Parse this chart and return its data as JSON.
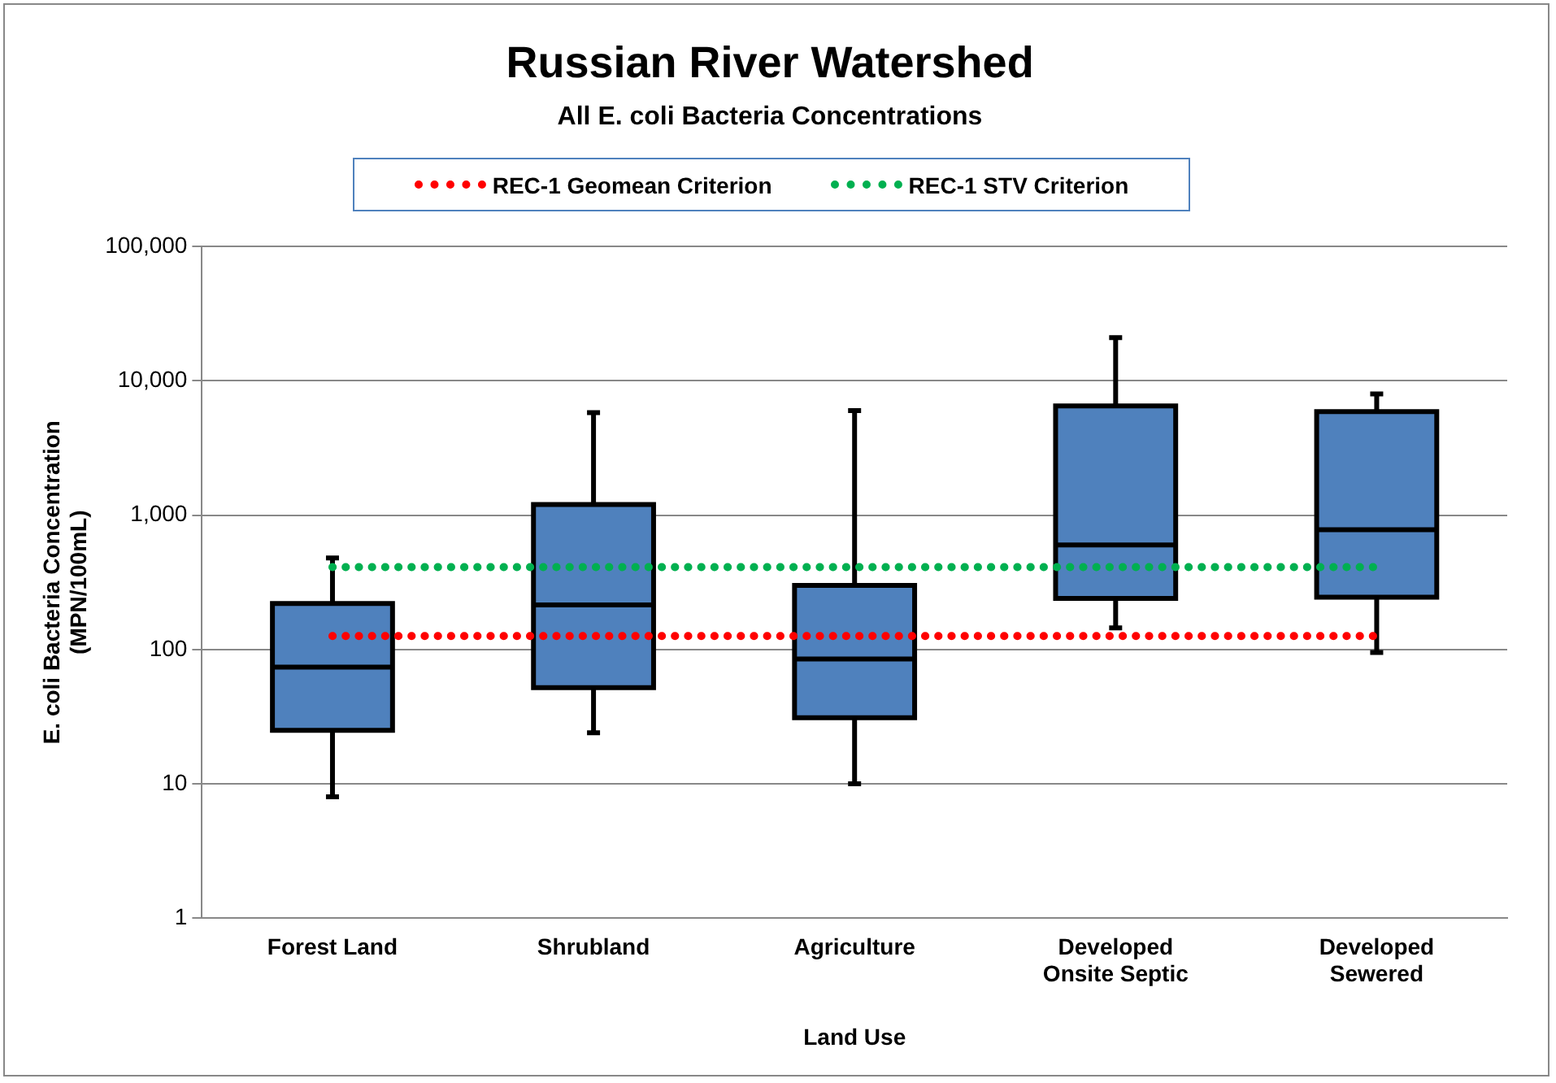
{
  "chart_data": {
    "type": "box",
    "title": "Russian River Watershed",
    "subtitle": "All E. coli Bacteria Concentrations",
    "xlabel": "Land Use",
    "ylabel": "E. coli Bacteria Concentration\n(MPN/100mL)",
    "categories": [
      "Forest Land",
      "Shrubland",
      "Agriculture",
      "Developed\nOnsite Septic",
      "Developed\nSewered"
    ],
    "color": "#4f81bd",
    "boxes": [
      {
        "low": 8,
        "q1": 25,
        "median": 74,
        "q3": 220,
        "high": 480
      },
      {
        "low": 24,
        "q1": 52,
        "median": 215,
        "q3": 1200,
        "high": 5800
      },
      {
        "low": 10,
        "q1": 31,
        "median": 85,
        "q3": 300,
        "high": 6000
      },
      {
        "low": 145,
        "q1": 240,
        "median": 600,
        "q3": 6500,
        "high": 21000
      },
      {
        "low": 95,
        "q1": 245,
        "median": 780,
        "q3": 5900,
        "high": 8000
      }
    ],
    "ref_lines": [
      {
        "axis": "y",
        "value": 126,
        "label": "REC-1 Geomean Criterion",
        "color": "#ff0000",
        "line_style": "dotted"
      },
      {
        "axis": "y",
        "value": 410,
        "label": "REC-1 STV Criterion",
        "color": "#00b050",
        "line_style": "dotted"
      }
    ],
    "log": true,
    "ylim": [
      1,
      100000
    ],
    "yticks": [
      1,
      10,
      100,
      {
        "value": 1000,
        "label": "1,000"
      },
      {
        "value": 10000,
        "label": "10,000"
      },
      {
        "value": 100000,
        "label": "100,000"
      }
    ],
    "grid": "y",
    "legend": "top"
  }
}
